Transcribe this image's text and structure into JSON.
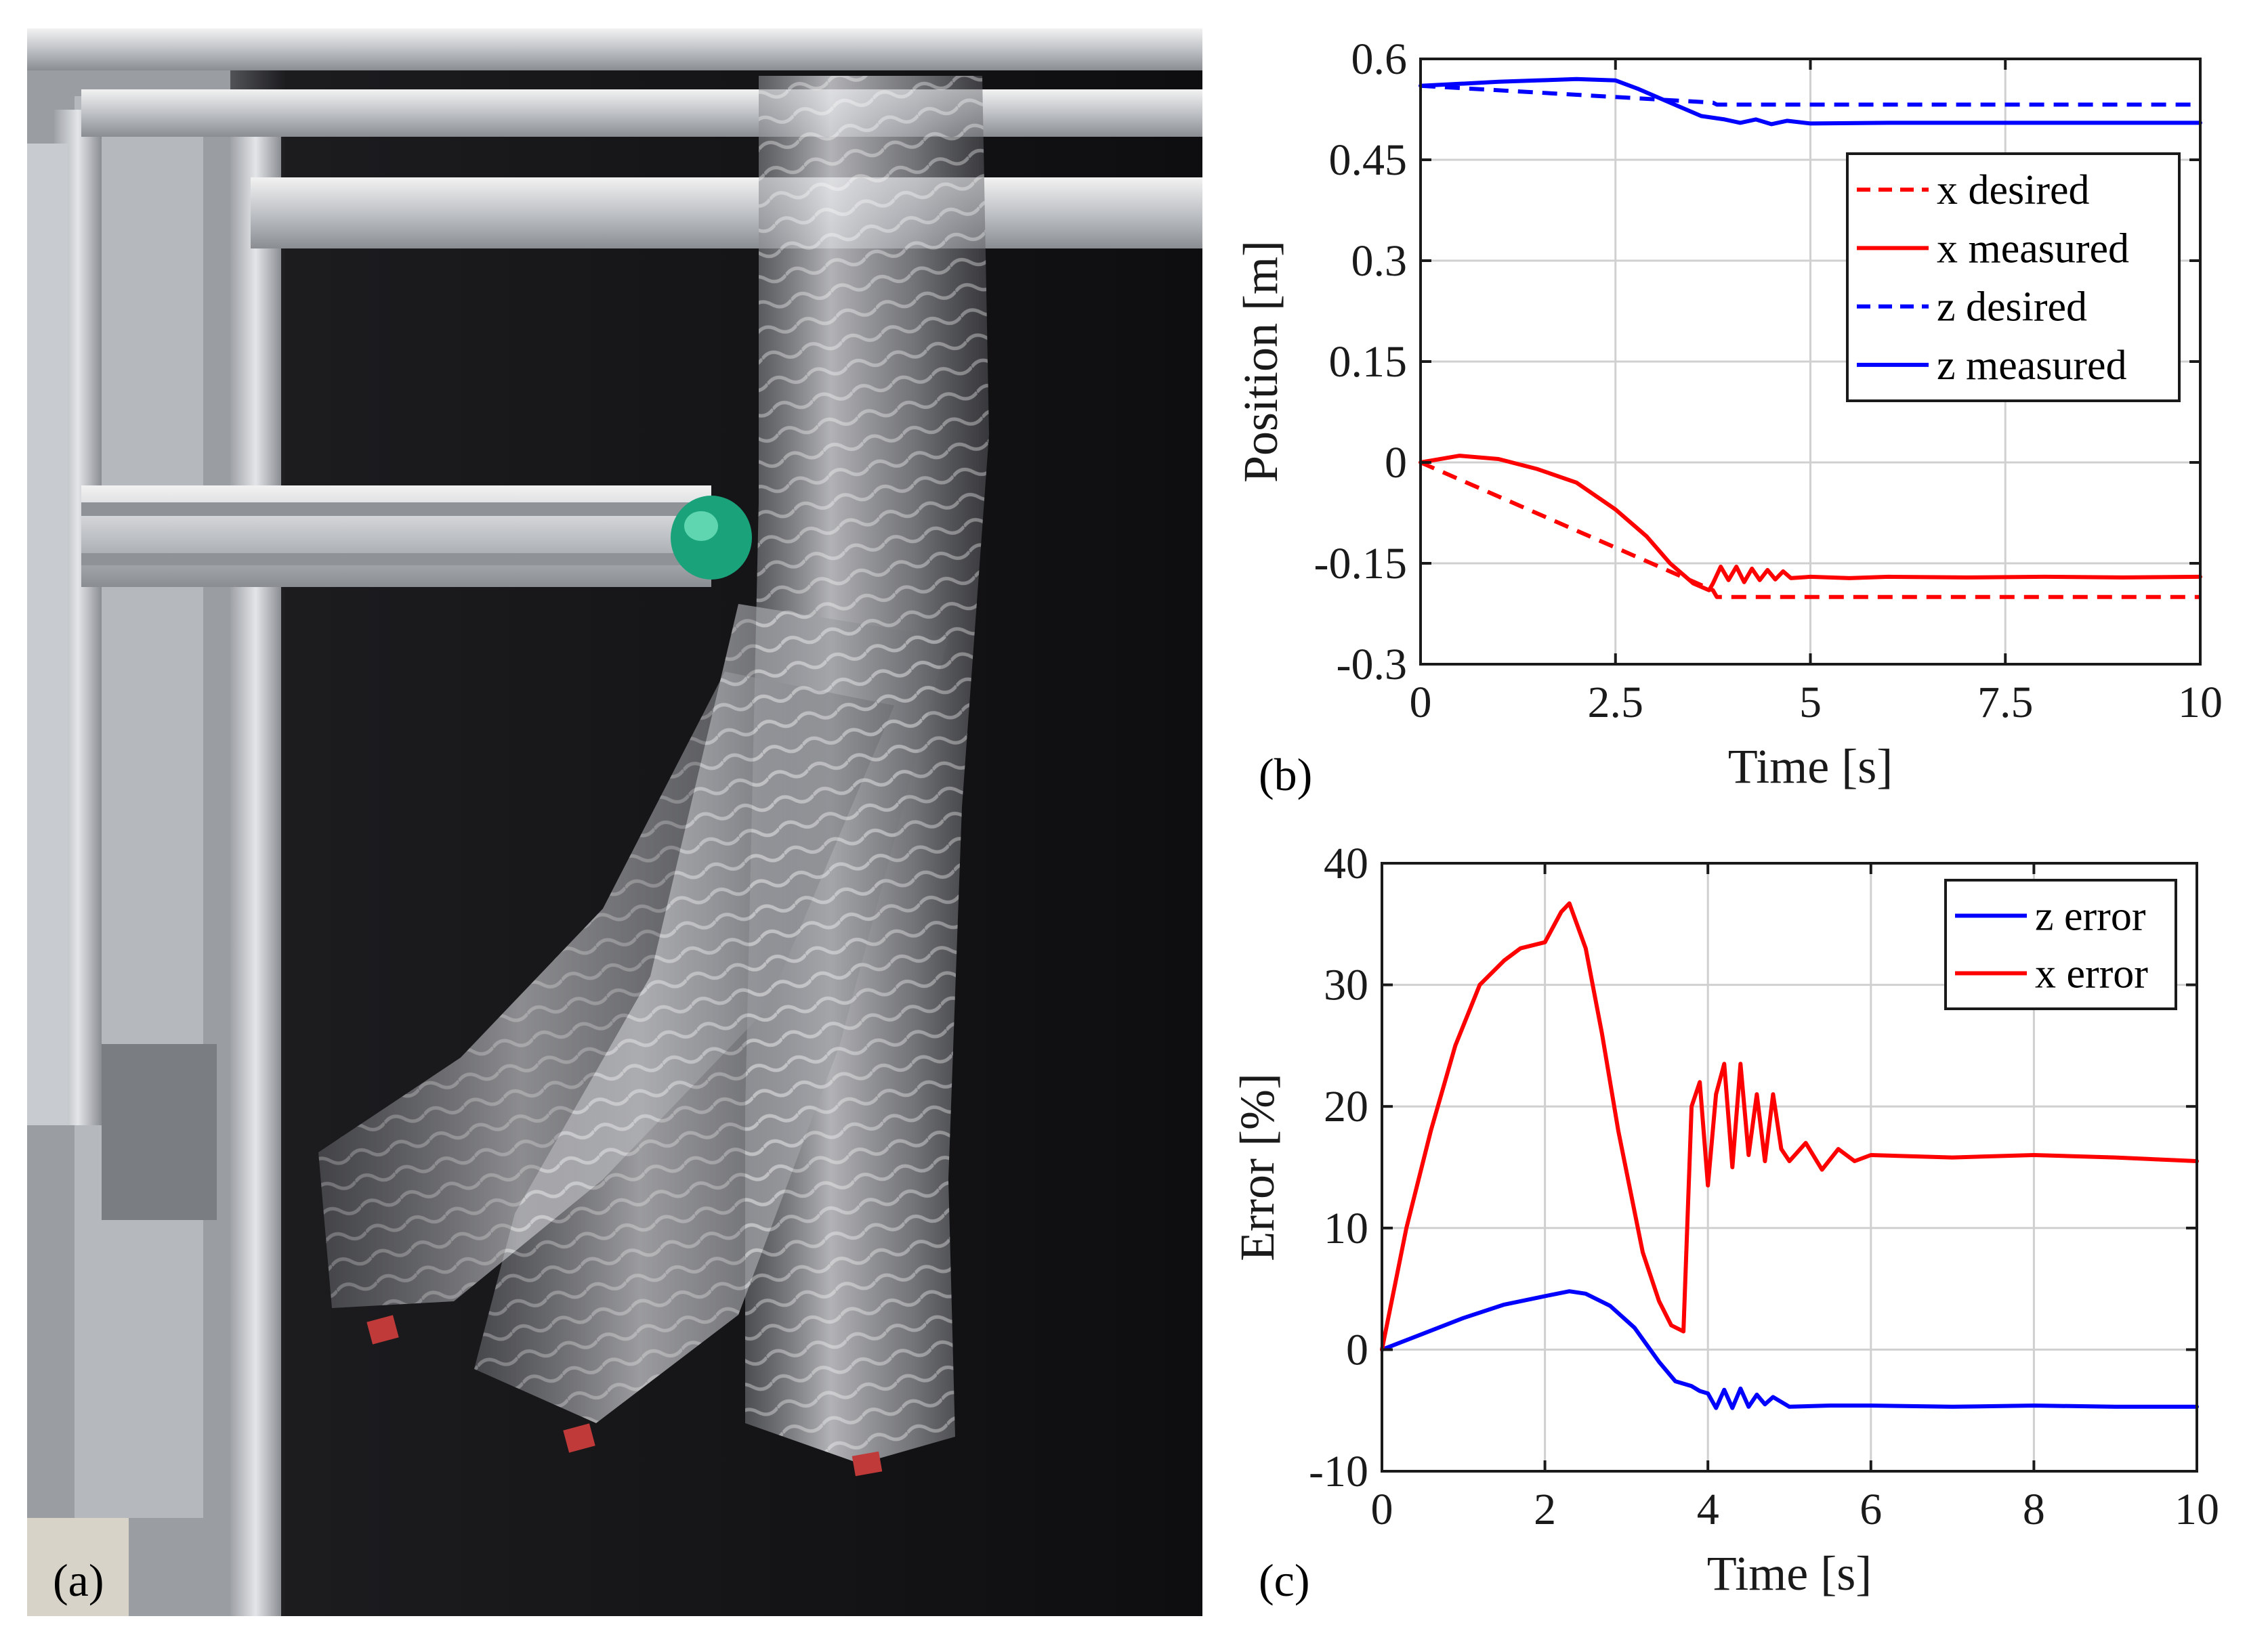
{
  "figure": {
    "panel_labels": {
      "a": "(a)",
      "b": "(b)",
      "c": "(c)"
    },
    "photo": {
      "description_icon": "soft-robot-arm-photo"
    }
  },
  "chart_data": [
    {
      "id": "b",
      "type": "line",
      "xlabel": "Time [s]",
      "ylabel": "Position [m]",
      "xlim": [
        0,
        10
      ],
      "ylim": [
        -0.3,
        0.6
      ],
      "xticks": [
        0,
        2.5,
        5,
        7.5,
        10
      ],
      "xtick_labels": [
        "0",
        "2.5",
        "5",
        "7.5",
        "10"
      ],
      "yticks": [
        -0.3,
        -0.15,
        0,
        0.15,
        0.3,
        0.45,
        0.6
      ],
      "ytick_labels": [
        "-0.3",
        "-0.15",
        "0",
        "0.15",
        "0.3",
        "0.45",
        "0.6"
      ],
      "grid": true,
      "legend_position": "upper-right",
      "series": [
        {
          "name": "x desired",
          "color": "#ff0000",
          "dash": true,
          "x": [
            0,
            3.75,
            3.8,
            10
          ],
          "y": [
            0,
            -0.19,
            -0.2,
            -0.2
          ]
        },
        {
          "name": "x measured",
          "color": "#ff0000",
          "dash": false,
          "x": [
            0,
            0.5,
            1,
            1.5,
            2,
            2.5,
            2.9,
            3.2,
            3.5,
            3.7,
            3.75,
            3.85,
            3.95,
            4.05,
            4.15,
            4.25,
            4.35,
            4.45,
            4.55,
            4.65,
            4.75,
            5,
            5.5,
            6,
            7,
            8,
            9,
            10
          ],
          "y": [
            0,
            0.01,
            0.005,
            -0.01,
            -0.03,
            -0.07,
            -0.11,
            -0.15,
            -0.18,
            -0.19,
            -0.18,
            -0.155,
            -0.175,
            -0.155,
            -0.178,
            -0.158,
            -0.175,
            -0.16,
            -0.174,
            -0.162,
            -0.172,
            -0.17,
            -0.172,
            -0.17,
            -0.171,
            -0.17,
            -0.171,
            -0.17
          ]
        },
        {
          "name": "z desired",
          "color": "#0000ff",
          "dash": true,
          "x": [
            0,
            3.75,
            3.8,
            10
          ],
          "y": [
            0.56,
            0.535,
            0.532,
            0.532
          ]
        },
        {
          "name": "z measured",
          "color": "#0000ff",
          "dash": false,
          "x": [
            0,
            0.5,
            1,
            1.5,
            2,
            2.5,
            2.8,
            3.2,
            3.6,
            3.9,
            4.1,
            4.3,
            4.5,
            4.7,
            5,
            6,
            7,
            8,
            9,
            10
          ],
          "y": [
            0.56,
            0.563,
            0.566,
            0.568,
            0.57,
            0.568,
            0.555,
            0.535,
            0.515,
            0.51,
            0.505,
            0.51,
            0.503,
            0.508,
            0.504,
            0.505,
            0.505,
            0.505,
            0.505,
            0.505
          ]
        }
      ]
    },
    {
      "id": "c",
      "type": "line",
      "xlabel": "Time [s]",
      "ylabel": "Error [%]",
      "xlim": [
        0,
        10
      ],
      "ylim": [
        -10,
        40
      ],
      "xticks": [
        0,
        2,
        4,
        6,
        8,
        10
      ],
      "xtick_labels": [
        "0",
        "2",
        "4",
        "6",
        "8",
        "10"
      ],
      "yticks": [
        -10,
        0,
        10,
        20,
        30,
        40
      ],
      "ytick_labels": [
        "-10",
        "0",
        "10",
        "20",
        "30",
        "40"
      ],
      "grid": true,
      "legend_position": "upper-right",
      "series": [
        {
          "name": "z error",
          "color": "#0000ff",
          "dash": false,
          "x": [
            0,
            0.5,
            1,
            1.5,
            2,
            2.3,
            2.5,
            2.8,
            3.1,
            3.4,
            3.6,
            3.8,
            3.9,
            4.0,
            4.1,
            4.2,
            4.3,
            4.4,
            4.5,
            4.6,
            4.7,
            4.8,
            5,
            5.5,
            6,
            7,
            8,
            9,
            10
          ],
          "y": [
            0,
            1.3,
            2.6,
            3.7,
            4.4,
            4.8,
            4.6,
            3.6,
            1.8,
            -1,
            -2.6,
            -3,
            -3.4,
            -3.6,
            -4.8,
            -3.3,
            -4.8,
            -3.2,
            -4.7,
            -3.7,
            -4.5,
            -3.9,
            -4.7,
            -4.6,
            -4.6,
            -4.7,
            -4.6,
            -4.7,
            -4.7
          ]
        },
        {
          "name": "x error",
          "color": "#ff0000",
          "dash": false,
          "x": [
            0,
            0.3,
            0.6,
            0.9,
            1.2,
            1.5,
            1.7,
            2.0,
            2.2,
            2.3,
            2.5,
            2.7,
            2.9,
            3.2,
            3.4,
            3.55,
            3.7,
            3.8,
            3.9,
            4.0,
            4.1,
            4.2,
            4.3,
            4.4,
            4.5,
            4.6,
            4.7,
            4.8,
            4.9,
            5.0,
            5.2,
            5.4,
            5.6,
            5.8,
            6.0,
            7.0,
            8.0,
            9.0,
            10.0
          ],
          "y": [
            0,
            10,
            18,
            25,
            30,
            32,
            33,
            33.5,
            36,
            36.7,
            33,
            26,
            18,
            8,
            4,
            2,
            1.5,
            20,
            22,
            13.5,
            21,
            23.5,
            15,
            23.5,
            16,
            21,
            15.5,
            21,
            16.5,
            15.5,
            17,
            14.8,
            16.5,
            15.5,
            16,
            15.8,
            16,
            15.8,
            15.5
          ]
        }
      ]
    }
  ]
}
